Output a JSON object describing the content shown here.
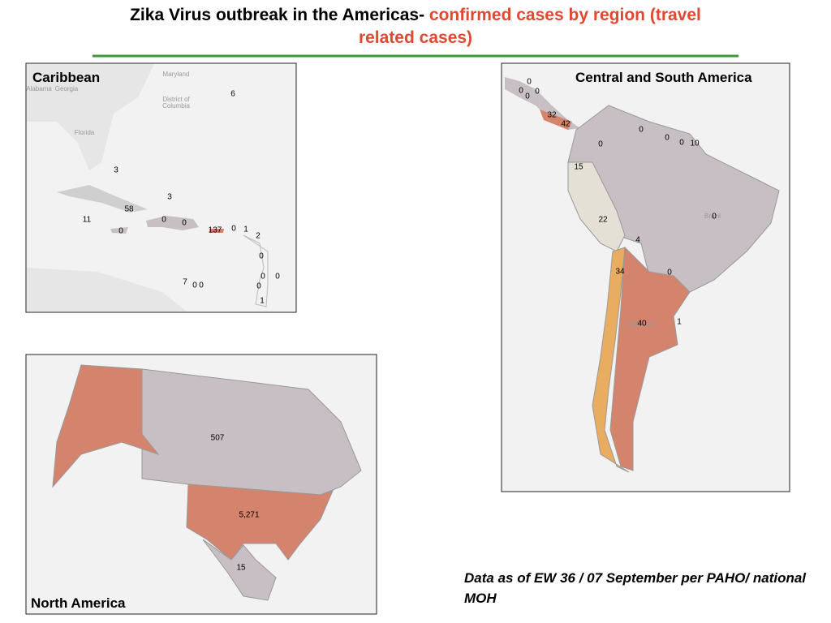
{
  "title": {
    "plain": "Zika Virus outbreak in the Americas- ",
    "highlight": "confirmed cases by region (travel related cases)"
  },
  "panels": {
    "caribbean": {
      "label": "Caribbean",
      "place_labels": [
        "Maryland",
        "Alabama",
        "Georgia",
        "District of",
        "Columbia",
        "Florida"
      ],
      "case_labels": [
        "6",
        "3",
        "3",
        "58",
        "11",
        "0",
        "0",
        "0",
        "137",
        "0",
        "1",
        "2",
        "0",
        "0",
        "0",
        "0",
        "7",
        "0",
        "0",
        "1"
      ]
    },
    "central_south": {
      "label": "Central and South America",
      "place_labels": [
        "Brazil",
        "Argentina"
      ],
      "case_labels": [
        "0",
        "0",
        "0",
        "0",
        "32",
        "42",
        "0",
        "0",
        "0",
        "10",
        "0",
        "15",
        "22",
        "0",
        "4",
        "34",
        "0",
        "40",
        "1"
      ]
    },
    "north_america": {
      "label": "North America",
      "case_labels": [
        "507",
        "5,271",
        "15"
      ]
    }
  },
  "footnote": "Data as of EW 36 / 07 September per PAHO/ national MOH"
}
